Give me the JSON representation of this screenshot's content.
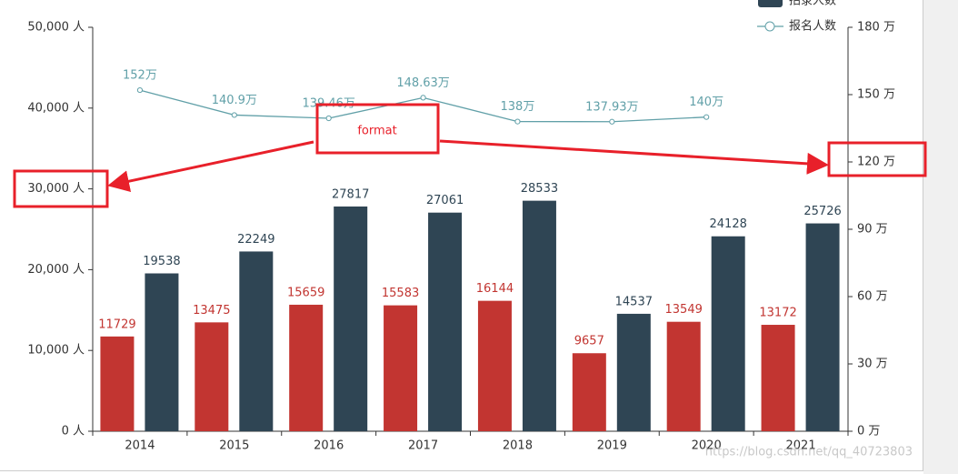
{
  "chart_data": {
    "type": "bar",
    "categories": [
      "2014",
      "2015",
      "2016",
      "2017",
      "2018",
      "2019",
      "2020",
      "2021"
    ],
    "series": [
      {
        "color": "#c23531",
        "values": [
          11729,
          13475,
          15659,
          15583,
          16144,
          9657,
          13549,
          13172
        ]
      },
      {
        "name": "招录人数",
        "color": "#2f4554",
        "values": [
          19538,
          22249,
          27817,
          27061,
          28533,
          14537,
          24128,
          25726
        ]
      },
      {
        "name": "报名人数",
        "type": "line",
        "axis": "y2",
        "color": "#61a0a8",
        "values": [
          152,
          140.9,
          139.46,
          148.63,
          138,
          137.93,
          140,
          null
        ],
        "value_labels": [
          "152万",
          "140.9万",
          "139.46万",
          "148.63万",
          "138万",
          "137.93万",
          "140万",
          null
        ]
      }
    ],
    "ylim": [
      0,
      50000
    ],
    "yticks": [
      {
        "value": 0,
        "label": "0 人"
      },
      {
        "value": 10000,
        "label": "10,000 人"
      },
      {
        "value": 20000,
        "label": "20,000 人"
      },
      {
        "value": 30000,
        "label": "30,000 人"
      },
      {
        "value": 40000,
        "label": "40,000 人"
      },
      {
        "value": 50000,
        "label": "50,000 人"
      }
    ],
    "y2lim": [
      0,
      180
    ],
    "y2ticks": [
      {
        "value": 0,
        "label": "0 万"
      },
      {
        "value": 30,
        "label": "30 万"
      },
      {
        "value": 60,
        "label": "60 万"
      },
      {
        "value": 90,
        "label": "90 万"
      },
      {
        "value": 120,
        "label": "120 万"
      },
      {
        "value": 150,
        "label": "150 万"
      },
      {
        "value": 180,
        "label": "180 万"
      }
    ],
    "annotations": [
      "format"
    ],
    "watermark": "https://blog.csdn.net/qq_40723803"
  }
}
